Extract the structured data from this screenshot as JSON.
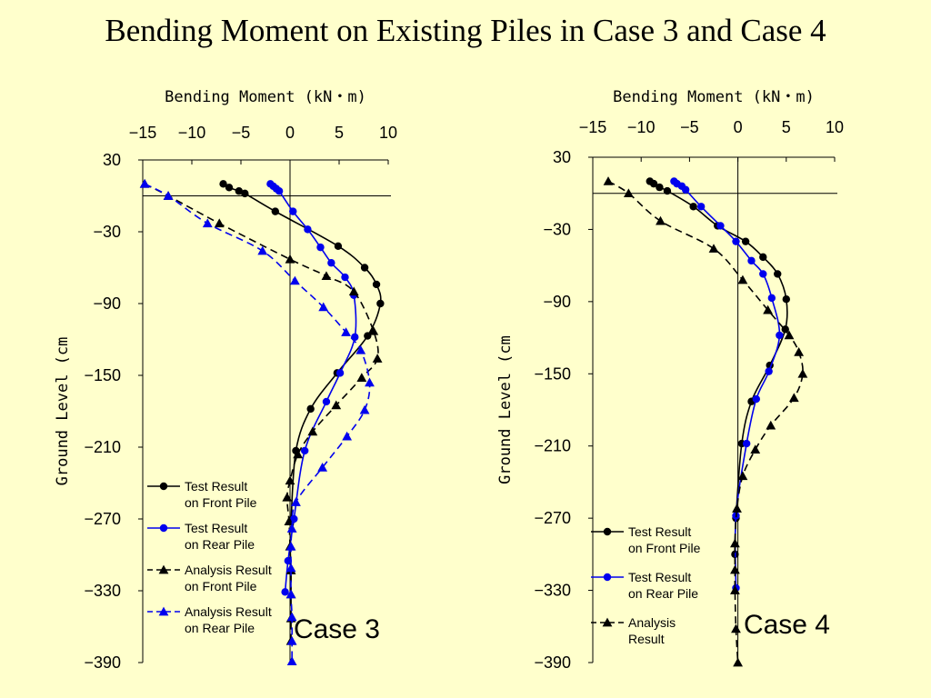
{
  "slide_title": "Bending Moment on Existing Piles in Case 3 and Case 4",
  "colors": {
    "background": "#ffffcc",
    "black_series": "#000000",
    "blue_series": "#0000ee"
  },
  "chart_data": [
    {
      "type": "line",
      "case_label": "Case 3",
      "xlabel": "Bending Moment (kN・m)",
      "ylabel": "Ground Level (cm",
      "xlim": [
        -15,
        10
      ],
      "ylim": [
        -390,
        30
      ],
      "xticks": [
        -15,
        -10,
        -5,
        0,
        5,
        10
      ],
      "yticks": [
        30,
        -30,
        -90,
        -150,
        -210,
        -270,
        -330,
        -390
      ],
      "ground_level": 0,
      "legend_position": "bottom-left",
      "series": [
        {
          "name": [
            "Test Result",
            "on Front Pile"
          ],
          "color": "#000000",
          "marker": "circle",
          "line": "solid",
          "x": [
            -6.8,
            -6.2,
            -5.2,
            -4.6,
            -1.5,
            4.9,
            7.6,
            8.8,
            9.2,
            7.9,
            4.8,
            2.1,
            0.6,
            0.1
          ],
          "y": [
            10,
            7,
            4,
            2,
            -13,
            -42,
            -60,
            -74,
            -90,
            -117,
            -148,
            -178,
            -213,
            -272
          ]
        },
        {
          "name": [
            "Test Result",
            "on Rear Pile"
          ],
          "color": "#0000ee",
          "marker": "circle",
          "line": "solid",
          "x": [
            -2.0,
            -1.7,
            -1.4,
            -1.1,
            0.3,
            1.8,
            3.1,
            4.2,
            5.6,
            6.5,
            6.6,
            5.1,
            3.7,
            1.5,
            0.4,
            -0.2,
            -0.5
          ],
          "y": [
            10,
            8,
            6,
            4,
            -13,
            -28,
            -43,
            -56,
            -68,
            -83,
            -118,
            -148,
            -172,
            -213,
            -270,
            -305,
            -331
          ]
        },
        {
          "name": [
            "Analysis Result",
            "on Front Pile"
          ],
          "color": "#000000",
          "marker": "triangle",
          "line": "dashed",
          "x": [
            -14.8,
            -12.4,
            -7.2,
            0.0,
            3.7,
            6.5,
            8.5,
            8.9,
            7.3,
            4.7,
            2.3,
            0.8,
            0.0,
            -0.3,
            -0.1,
            0.0,
            0.1,
            0.1,
            0.1,
            0.1
          ],
          "y": [
            10,
            0,
            -23,
            -53,
            -67,
            -80,
            -113,
            -136,
            -152,
            -175,
            -197,
            -216,
            -238,
            -252,
            -272,
            -293,
            -313,
            -333,
            -353,
            -372
          ]
        },
        {
          "name": [
            "Analysis Result",
            "on Rear Pile"
          ],
          "color": "#0000ee",
          "marker": "triangle",
          "line": "dashed",
          "x": [
            -14.8,
            -12.4,
            -8.4,
            -2.8,
            0.5,
            3.4,
            5.7,
            7.2,
            8.1,
            7.6,
            5.8,
            3.3,
            0.6,
            0.2,
            0.1,
            0.1,
            0.1,
            0.2,
            0.2,
            0.2
          ],
          "y": [
            10,
            0,
            -23,
            -46,
            -71,
            -93,
            -114,
            -129,
            -156,
            -179,
            -201,
            -227,
            -256,
            -278,
            -293,
            -311,
            -333,
            -352,
            -372,
            -389
          ]
        }
      ]
    },
    {
      "type": "line",
      "case_label": "Case 4",
      "xlabel": "Bending Moment (kN・m)",
      "ylabel": "Ground Level (cm",
      "xlim": [
        -15,
        10
      ],
      "ylim": [
        -390,
        30
      ],
      "xticks": [
        -15,
        -10,
        -5,
        0,
        5,
        10
      ],
      "yticks": [
        30,
        -30,
        -90,
        -150,
        -210,
        -270,
        -330,
        -390
      ],
      "ground_level": 0,
      "legend_position": "bottom-left",
      "series": [
        {
          "name": [
            "Test Result",
            "on Front Pile"
          ],
          "color": "#000000",
          "marker": "circle",
          "line": "solid",
          "x": [
            -9.1,
            -8.7,
            -8.1,
            -7.3,
            -4.6,
            -2.1,
            0.8,
            2.6,
            4.1,
            5.0,
            4.9,
            3.3,
            1.4,
            0.4,
            -0.2,
            -0.3
          ],
          "y": [
            10,
            8,
            5,
            2,
            -11,
            -27,
            -40,
            -53,
            -67,
            -88,
            -113,
            -143,
            -173,
            -208,
            -270,
            -300
          ]
        },
        {
          "name": [
            "Test Result",
            "on Rear Pile"
          ],
          "color": "#0000ee",
          "marker": "circle",
          "line": "solid",
          "x": [
            -6.6,
            -6.3,
            -5.8,
            -5.4,
            -3.8,
            -1.8,
            -0.2,
            1.4,
            2.6,
            3.5,
            4.3,
            3.2,
            1.9,
            0.9,
            -0.2,
            -0.2
          ],
          "y": [
            10,
            8,
            6,
            3,
            -11,
            -27,
            -40,
            -56,
            -67,
            -87,
            -118,
            -148,
            -171,
            -208,
            -268,
            -328
          ]
        },
        {
          "name": [
            "Analysis",
            "Result"
          ],
          "color": "#000000",
          "marker": "triangle",
          "line": "dashed",
          "x": [
            -13.4,
            -11.3,
            -8.0,
            -2.5,
            0.5,
            3.1,
            5.3,
            6.3,
            6.7,
            5.8,
            3.4,
            1.8,
            0.5,
            -0.1,
            -0.3,
            -0.3,
            -0.3,
            -0.2,
            0.0
          ],
          "y": [
            10,
            0,
            -23,
            -46,
            -72,
            -97,
            -118,
            -132,
            -150,
            -170,
            -193,
            -213,
            -235,
            -262,
            -291,
            -313,
            -330,
            -362,
            -390
          ]
        }
      ]
    }
  ]
}
